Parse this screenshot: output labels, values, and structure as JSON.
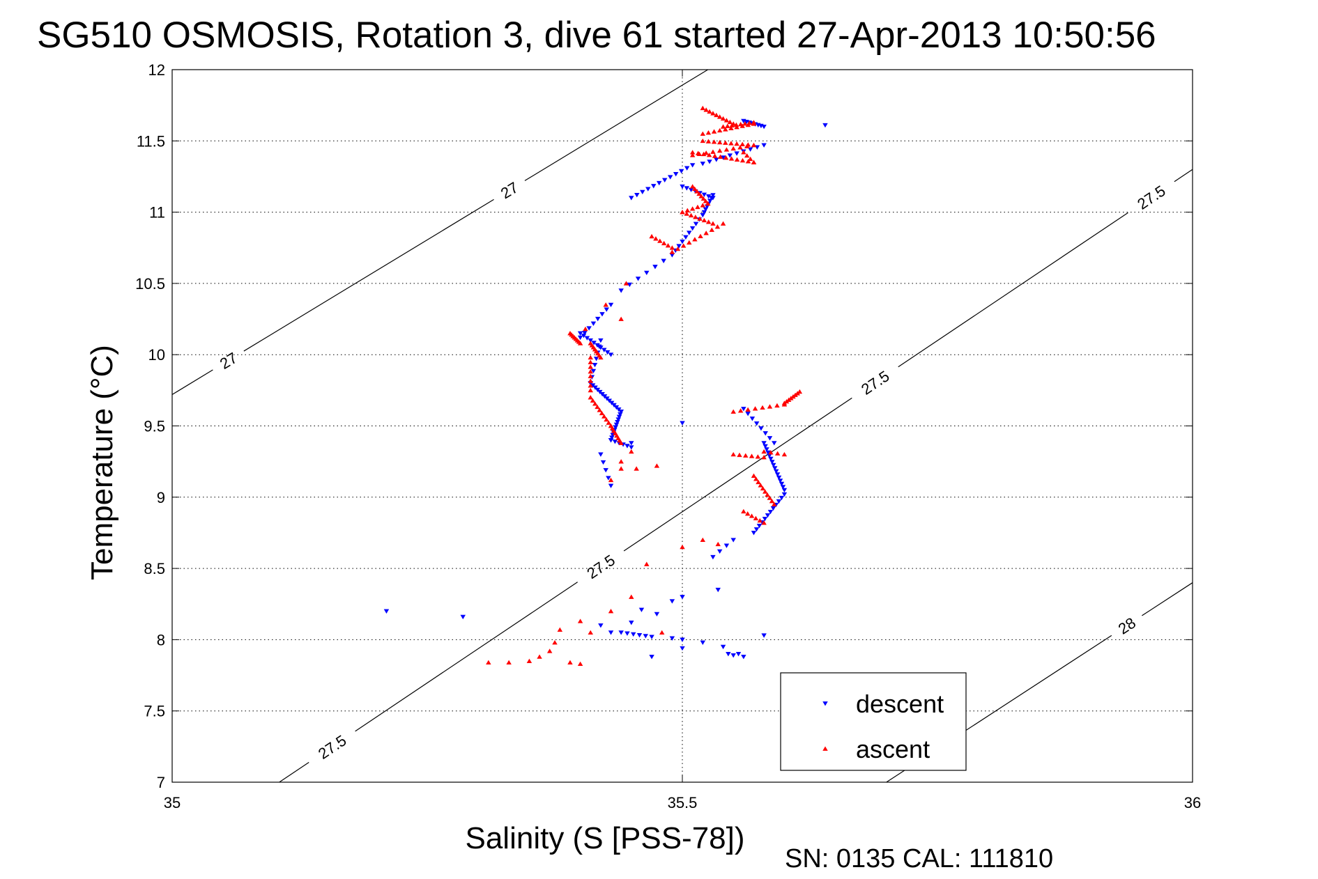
{
  "chart_data": {
    "type": "scatter",
    "title": "SG510 OSMOSIS, Rotation 3, dive 61 started 27-Apr-2013 10:50:56",
    "xlabel": "Salinity (S [PSS-78])",
    "ylabel": "Temperature (°C)",
    "xlim": [
      35,
      36
    ],
    "ylim": [
      7,
      12
    ],
    "xticks": [
      35,
      35.5,
      36
    ],
    "xtick_labels": [
      "35",
      "35.5",
      "36"
    ],
    "yticks": [
      7,
      7.5,
      8,
      8.5,
      9,
      9.5,
      10,
      10.5,
      11,
      11.5,
      12
    ],
    "ytick_labels": [
      "7",
      "7.5",
      "8",
      "8.5",
      "9",
      "9.5",
      "10",
      "10.5",
      "11",
      "11.5",
      "12"
    ],
    "grid": true,
    "legend_position": "bottom-right",
    "footer": "SN: 0135  CAL: 111810",
    "isopycnals": [
      {
        "label": "27",
        "points": [
          [
            35,
            9.72
          ],
          [
            35.525,
            12
          ]
        ],
        "label_at": [
          [
            35.055,
            9.96
          ],
          [
            35.33,
            11.16
          ]
        ]
      },
      {
        "label": "27.5",
        "points": [
          [
            35.105,
            7
          ],
          [
            36,
            11.3
          ]
        ],
        "label_at": [
          [
            35.15,
            7.32
          ],
          [
            35.41,
            8.62
          ],
          [
            35.68,
            9.9
          ],
          [
            35.96,
            11.1
          ]
        ]
      },
      {
        "label": "28",
        "points": [
          [
            35.7,
            7
          ],
          [
            36,
            8.4
          ]
        ],
        "label_at": [
          [
            35.94,
            8.05
          ]
        ]
      }
    ],
    "series": [
      {
        "name": "descent",
        "color": "#0000ff",
        "marker": "triangle-down",
        "segments": [
          {
            "from": [
              35.56,
              11.64
            ],
            "to": [
              35.58,
              11.6
            ],
            "n": 8
          },
          {
            "from": [
              35.58,
              11.47
            ],
            "to": [
              35.52,
              11.34
            ],
            "n": 10
          },
          {
            "from": [
              35.51,
              11.33
            ],
            "to": [
              35.45,
              11.1
            ],
            "n": 12
          },
          {
            "from": [
              35.5,
              11.18
            ],
            "to": [
              35.53,
              11.1
            ],
            "n": 8
          },
          {
            "from": [
              35.53,
              11.12
            ],
            "to": [
              35.52,
              10.98
            ],
            "n": 8
          },
          {
            "from": [
              35.52,
              10.98
            ],
            "to": [
              35.49,
              10.7
            ],
            "n": 10
          },
          {
            "from": [
              35.49,
              10.7
            ],
            "to": [
              35.44,
              10.45
            ],
            "n": 7
          },
          {
            "from": [
              35.43,
              10.35
            ],
            "to": [
              35.4,
              10.12
            ],
            "n": 8
          },
          {
            "from": [
              35.4,
              10.15
            ],
            "to": [
              35.43,
              10.0
            ],
            "n": 10
          },
          {
            "from": [
              35.42,
              10.1
            ],
            "to": [
              35.41,
              9.8
            ],
            "n": 8
          },
          {
            "from": [
              35.41,
              9.8
            ],
            "to": [
              35.44,
              9.6
            ],
            "n": 14
          },
          {
            "from": [
              35.44,
              9.6
            ],
            "to": [
              35.43,
              9.4
            ],
            "n": 12
          },
          {
            "from": [
              35.43,
              9.4
            ],
            "to": [
              35.45,
              9.35
            ],
            "n": 6
          },
          {
            "from": [
              35.42,
              9.3
            ],
            "to": [
              35.43,
              9.08
            ],
            "n": 5
          },
          {
            "from": [
              35.56,
              9.62
            ],
            "to": [
              35.59,
              9.38
            ],
            "n": 8
          },
          {
            "from": [
              35.58,
              9.38
            ],
            "to": [
              35.6,
              9.05
            ],
            "n": 16
          },
          {
            "from": [
              35.6,
              9.02
            ],
            "to": [
              35.57,
              8.75
            ],
            "n": 12
          },
          {
            "from": [
              35.55,
              8.7
            ],
            "to": [
              35.53,
              8.58
            ],
            "n": 4
          },
          {
            "from": [
              35.44,
              8.05
            ],
            "to": [
              35.47,
              8.02
            ],
            "n": 6
          }
        ],
        "points": [
          [
            35.64,
            11.61
          ],
          [
            35.21,
            8.2
          ],
          [
            35.285,
            8.16
          ],
          [
            35.5,
            9.52
          ],
          [
            35.45,
            9.38
          ],
          [
            35.535,
            8.35
          ],
          [
            35.5,
            8.3
          ],
          [
            35.475,
            8.18
          ],
          [
            35.46,
            8.21
          ],
          [
            35.49,
            8.27
          ],
          [
            35.45,
            8.12
          ],
          [
            35.43,
            8.05
          ],
          [
            35.49,
            8.01
          ],
          [
            35.5,
            8.0
          ],
          [
            35.52,
            7.98
          ],
          [
            35.54,
            7.95
          ],
          [
            35.545,
            7.9
          ],
          [
            35.55,
            7.89
          ],
          [
            35.555,
            7.9
          ],
          [
            35.56,
            7.88
          ],
          [
            35.58,
            8.03
          ],
          [
            35.5,
            7.94
          ],
          [
            35.47,
            7.88
          ],
          [
            35.42,
            8.1
          ]
        ]
      },
      {
        "name": "ascent",
        "color": "#ff0000",
        "marker": "triangle-up",
        "segments": [
          {
            "from": [
              35.52,
              11.73
            ],
            "to": [
              35.55,
              11.62
            ],
            "n": 10
          },
          {
            "from": [
              35.54,
              11.6
            ],
            "to": [
              35.57,
              11.63
            ],
            "n": 8
          },
          {
            "from": [
              35.57,
              11.62
            ],
            "to": [
              35.52,
              11.55
            ],
            "n": 10
          },
          {
            "from": [
              35.52,
              11.5
            ],
            "to": [
              35.57,
              11.47
            ],
            "n": 10
          },
          {
            "from": [
              35.57,
              11.47
            ],
            "to": [
              35.51,
              11.4
            ],
            "n": 10
          },
          {
            "from": [
              35.51,
              11.42
            ],
            "to": [
              35.57,
              11.35
            ],
            "n": 12
          },
          {
            "from": [
              35.57,
              11.35
            ],
            "to": [
              35.56,
              11.42
            ],
            "n": 4
          },
          {
            "from": [
              35.51,
              11.18
            ],
            "to": [
              35.525,
              11.06
            ],
            "n": 8
          },
          {
            "from": [
              35.525,
              11.06
            ],
            "to": [
              35.5,
              11.0
            ],
            "n": 6
          },
          {
            "from": [
              35.5,
              11.0
            ],
            "to": [
              35.53,
              10.92
            ],
            "n": 8
          },
          {
            "from": [
              35.54,
              10.92
            ],
            "to": [
              35.49,
              10.72
            ],
            "n": 10
          },
          {
            "from": [
              35.49,
              10.75
            ],
            "to": [
              35.47,
              10.83
            ],
            "n": 6
          },
          {
            "from": [
              35.39,
              10.15
            ],
            "to": [
              35.4,
              10.08
            ],
            "n": 8
          },
          {
            "from": [
              35.41,
              10.08
            ],
            "to": [
              35.42,
              9.98
            ],
            "n": 8
          },
          {
            "from": [
              35.41,
              9.98
            ],
            "to": [
              35.41,
              9.75
            ],
            "n": 8
          },
          {
            "from": [
              35.41,
              9.7
            ],
            "to": [
              35.43,
              9.5
            ],
            "n": 10
          },
          {
            "from": [
              35.43,
              9.5
            ],
            "to": [
              35.44,
              9.38
            ],
            "n": 8
          },
          {
            "from": [
              35.55,
              9.6
            ],
            "to": [
              35.6,
              9.65
            ],
            "n": 8
          },
          {
            "from": [
              35.6,
              9.66
            ],
            "to": [
              35.615,
              9.74
            ],
            "n": 8
          },
          {
            "from": [
              35.55,
              9.3
            ],
            "to": [
              35.58,
              9.28
            ],
            "n": 6
          },
          {
            "from": [
              35.58,
              9.32
            ],
            "to": [
              35.6,
              9.3
            ],
            "n": 4
          },
          {
            "from": [
              35.57,
              9.15
            ],
            "to": [
              35.59,
              8.95
            ],
            "n": 10
          },
          {
            "from": [
              35.56,
              8.9
            ],
            "to": [
              35.58,
              8.82
            ],
            "n": 6
          }
        ],
        "points": [
          [
            35.445,
            10.5
          ],
          [
            35.425,
            10.35
          ],
          [
            35.44,
            10.25
          ],
          [
            35.405,
            10.18
          ],
          [
            35.45,
            9.32
          ],
          [
            35.44,
            9.25
          ],
          [
            35.44,
            9.2
          ],
          [
            35.455,
            9.2
          ],
          [
            35.475,
            9.22
          ],
          [
            35.43,
            9.12
          ],
          [
            35.52,
            8.7
          ],
          [
            35.535,
            8.67
          ],
          [
            35.5,
            8.65
          ],
          [
            35.465,
            8.53
          ],
          [
            35.45,
            8.3
          ],
          [
            35.43,
            8.2
          ],
          [
            35.41,
            8.05
          ],
          [
            35.4,
            8.13
          ],
          [
            35.38,
            8.07
          ],
          [
            35.375,
            7.98
          ],
          [
            35.37,
            7.92
          ],
          [
            35.36,
            7.88
          ],
          [
            35.35,
            7.85
          ],
          [
            35.33,
            7.84
          ],
          [
            35.31,
            7.84
          ],
          [
            35.39,
            7.84
          ],
          [
            35.4,
            7.83
          ],
          [
            35.48,
            8.05
          ]
        ]
      }
    ]
  }
}
